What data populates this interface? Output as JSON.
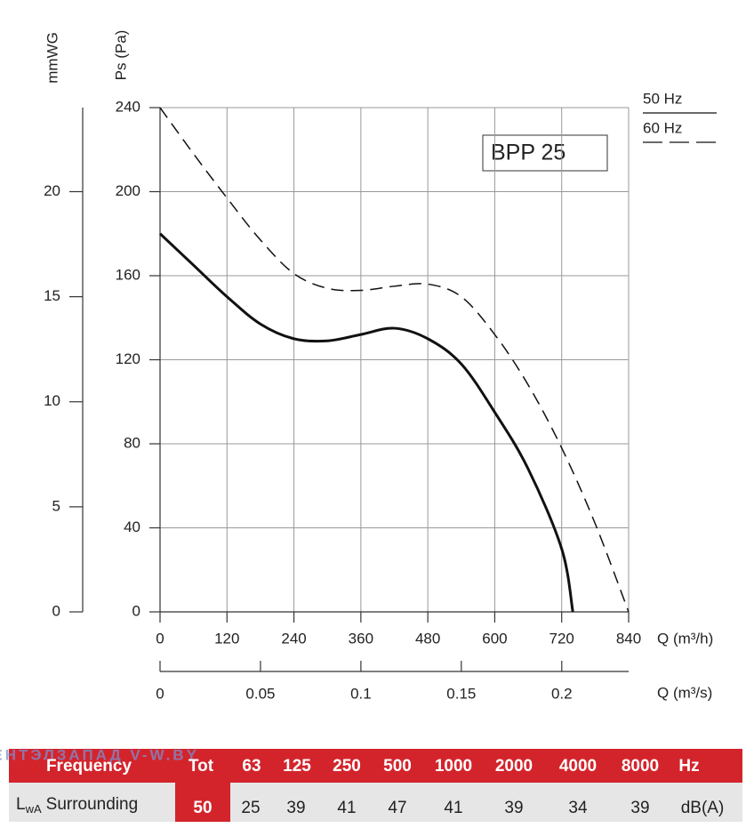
{
  "chart_data": {
    "type": "line",
    "box_label": "BPP 25",
    "x_label": "Q (m³/h)",
    "y_label": "Ps (Pa)",
    "y2_label": "mmWG",
    "x2_label": "Q (m³/s)",
    "x": [
      0,
      60,
      120,
      180,
      240,
      300,
      360,
      420,
      480,
      540,
      600,
      660,
      720,
      780,
      840
    ],
    "series": [
      {
        "name": "50 Hz",
        "color": "#111111",
        "dash": false,
        "values": [
          180,
          165,
          150,
          137,
          130,
          129,
          132,
          135,
          130,
          118,
          95,
          68,
          30,
          null,
          null
        ],
        "end": [
          740,
          0
        ]
      },
      {
        "name": "60 Hz",
        "color": "#111111",
        "dash": true,
        "values": [
          240,
          218,
          197,
          177,
          161,
          154,
          153,
          155,
          156,
          150,
          132,
          108,
          78,
          42,
          0
        ]
      }
    ],
    "xlim": [
      0,
      840
    ],
    "xticks": [
      0,
      120,
      240,
      360,
      480,
      600,
      720,
      840
    ],
    "ylim": [
      0,
      240
    ],
    "yticks": [
      0,
      40,
      80,
      120,
      160,
      200,
      240
    ],
    "y2lim": [
      0,
      24
    ],
    "y2ticks": [
      0,
      5,
      10,
      15,
      20
    ],
    "x2lim": [
      0,
      0.2333
    ],
    "x2ticks": [
      0,
      0.05,
      0.1,
      0.15,
      0.2
    ],
    "grid": true
  },
  "watermark": "ВЕНТЭЛЗАПАД   V-W.BY",
  "table": {
    "header": [
      "Frequency",
      "Tot",
      "63",
      "125",
      "250",
      "500",
      "1000",
      "2000",
      "4000",
      "8000",
      "Hz"
    ],
    "row_label": {
      "main": "L",
      "sub": "wA",
      "rest": "Surrounding"
    },
    "row": [
      50,
      25,
      39,
      41,
      47,
      41,
      39,
      34,
      39,
      "dB(A)"
    ]
  }
}
